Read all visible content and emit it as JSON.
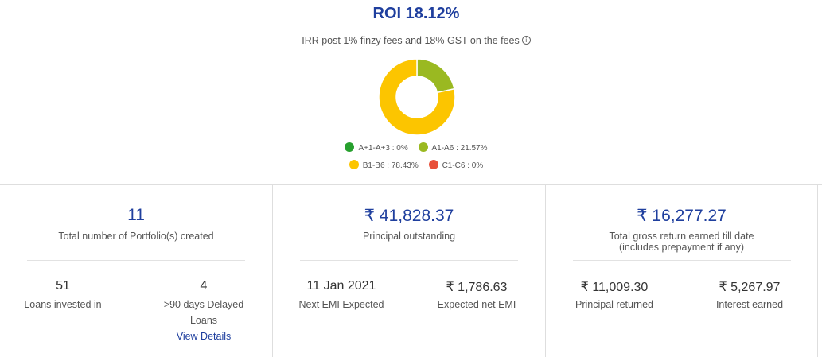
{
  "roi": {
    "title": "ROI 18.12%",
    "subtitle": "IRR post 1% finzy fees and 18% GST on the fees",
    "info_glyph": "i"
  },
  "chart_data": {
    "type": "pie",
    "donut": true,
    "categories": [
      "A+1-A+3",
      "A1-A6",
      "B1-B6",
      "C1-C6"
    ],
    "values": [
      0,
      21.57,
      78.43,
      0
    ],
    "colors": [
      "#27a02e",
      "#9ab921",
      "#fcc500",
      "#e8503a"
    ],
    "legend_labels": [
      "A+1-A+3 : 0%",
      "A1-A6 : 21.57%",
      "B1-B6 : 78.43%",
      "C1-C6 : 0%"
    ],
    "legend_position": "bottom"
  },
  "cards": {
    "portfolio": {
      "value": "11",
      "label": "Total number of Portfolio(s) created",
      "loans_invested_value": "51",
      "loans_invested_label": "Loans invested in",
      "delayed_value": "4",
      "delayed_label": ">90 days Delayed Loans",
      "view_details_label": "View Details"
    },
    "principal": {
      "currency": "₹",
      "value": "41,828.37",
      "label": "Principal outstanding",
      "next_emi_value": "11 Jan 2021",
      "next_emi_label": "Next EMI Expected",
      "expected_emi_value": "1,786.63",
      "expected_emi_label": "Expected net EMI"
    },
    "returns": {
      "currency": "₹",
      "value": "16,277.27",
      "label_line1": "Total gross return earned till date",
      "label_line2": "(includes prepayment if any)",
      "principal_returned_value": "11,009.30",
      "principal_returned_label": "Principal returned",
      "interest_value": "5,267.97",
      "interest_label": "Interest earned"
    }
  }
}
